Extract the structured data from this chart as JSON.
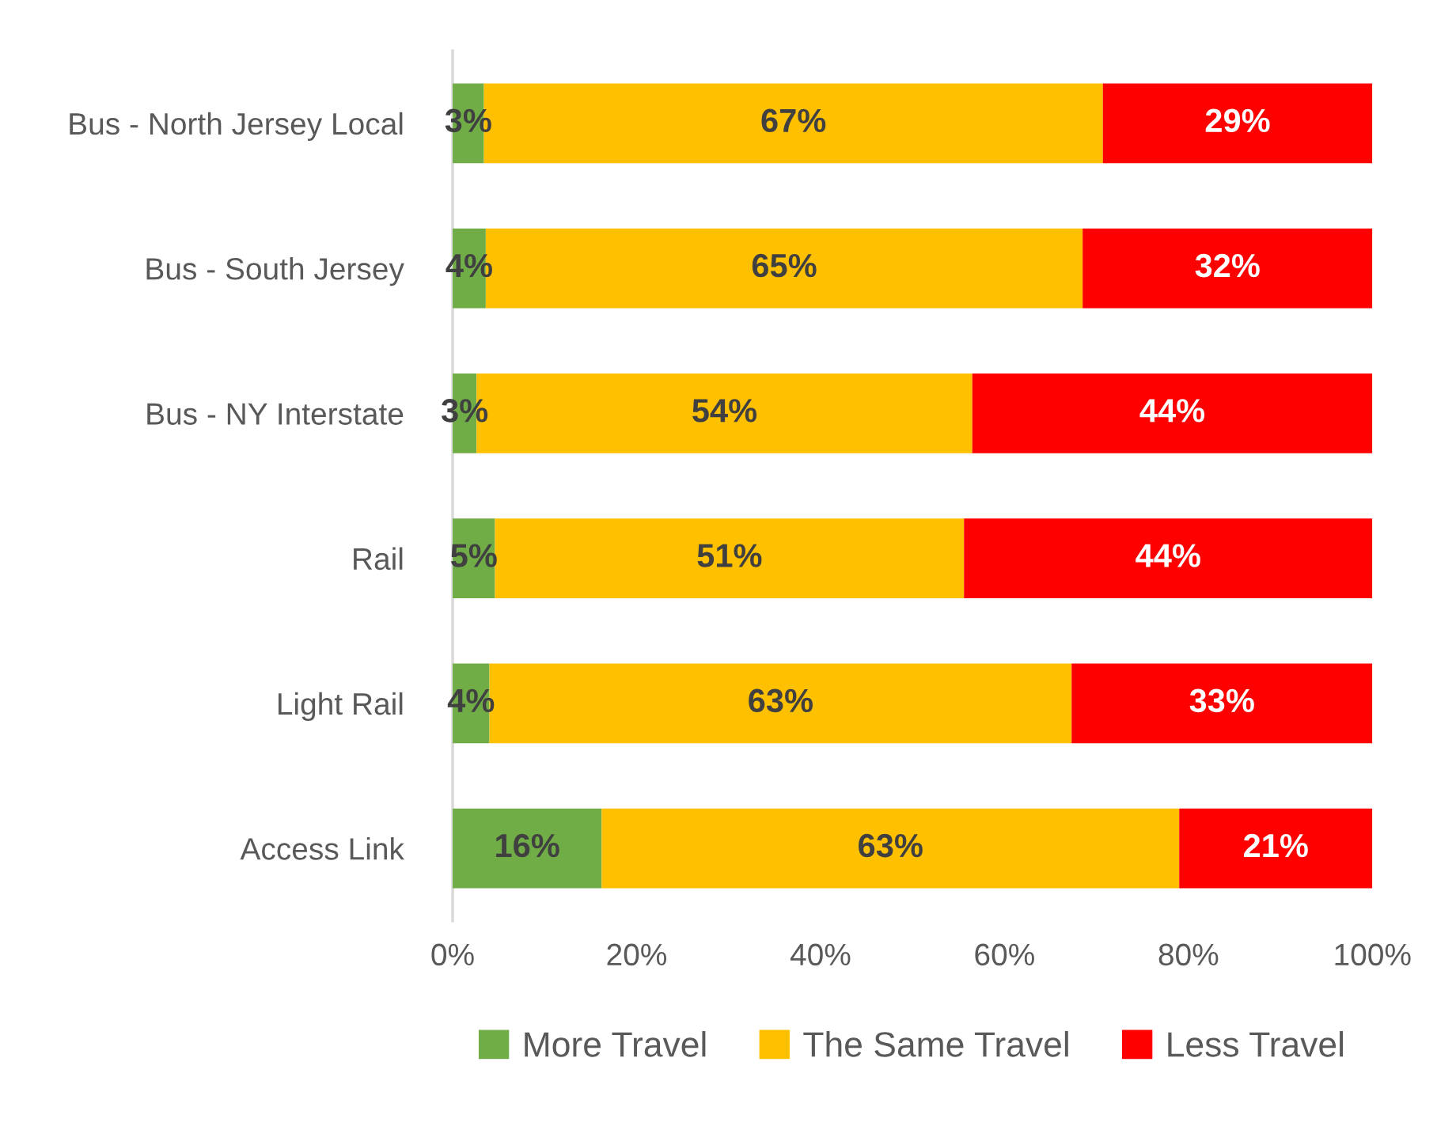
{
  "chart_data": {
    "type": "bar",
    "orientation": "horizontal",
    "stacked": true,
    "data_labels": true,
    "legend": "bottom",
    "grid": false,
    "categories": [
      "Bus - North Jersey Local",
      "Bus - South Jersey",
      "Bus - NY Interstate",
      "Rail",
      "Light Rail",
      "Access Link"
    ],
    "xlim": [
      0,
      100
    ],
    "xticks": [
      {
        "value": 0,
        "label": "0%"
      },
      {
        "value": 20,
        "label": "20%"
      },
      {
        "value": 40,
        "label": "40%"
      },
      {
        "value": 60,
        "label": "60%"
      },
      {
        "value": 80,
        "label": "80%"
      },
      {
        "value": 100,
        "label": "100%"
      }
    ],
    "series": [
      {
        "name": "More Travel",
        "color": "#70ad47",
        "values": [
          3.4,
          3.6,
          2.6,
          4.6,
          4.0,
          16.2
        ],
        "value_labels": [
          "3%",
          "4%",
          "3%",
          "5%",
          "4%",
          "16%"
        ]
      },
      {
        "name": "The Same Travel",
        "color": "#ffc000",
        "values": [
          67.3,
          64.9,
          53.9,
          51.0,
          63.3,
          62.8
        ],
        "value_labels": [
          "67%",
          "65%",
          "54%",
          "51%",
          "63%",
          "63%"
        ]
      },
      {
        "name": "Less Travel",
        "color": "#ff0000",
        "values": [
          29.3,
          31.5,
          43.5,
          44.4,
          32.7,
          21.0
        ],
        "value_labels": [
          "29%",
          "32%",
          "44%",
          "44%",
          "33%",
          "21%"
        ]
      }
    ]
  }
}
